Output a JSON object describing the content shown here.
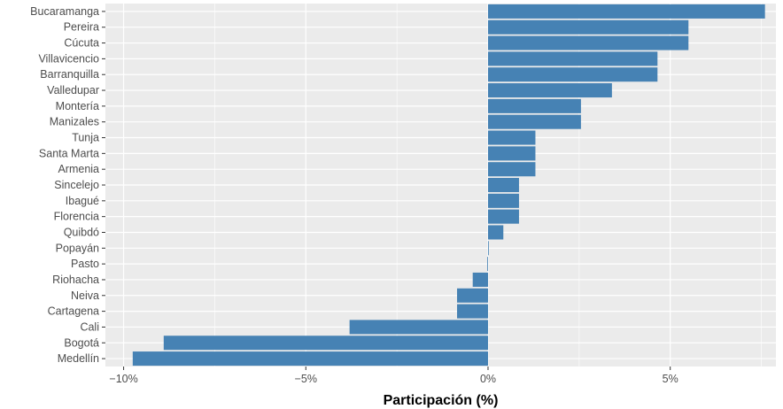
{
  "chart_data": {
    "type": "bar",
    "orientation": "horizontal",
    "title": "",
    "xlabel": "Participación (%)",
    "ylabel": "",
    "categories": [
      "Bucaramanga",
      "Pereira",
      "Cúcuta",
      "Villavicencio",
      "Barranquilla",
      "Valledupar",
      "Montería",
      "Manizales",
      "Tunja",
      "Santa Marta",
      "Armenia",
      "Sincelejo",
      "Ibagué",
      "Florencia",
      "Quibdó",
      "Popayán",
      "Pasto",
      "Riohacha",
      "Neiva",
      "Cartagena",
      "Cali",
      "Bogotá",
      "Medellín"
    ],
    "values": [
      7.6,
      5.5,
      5.5,
      4.65,
      4.65,
      3.4,
      2.55,
      2.55,
      1.3,
      1.3,
      1.3,
      0.85,
      0.85,
      0.85,
      0.42,
      0.02,
      -0.02,
      -0.42,
      -0.85,
      -0.85,
      -3.8,
      -8.9,
      -9.75
    ],
    "xlim": [
      -10.5,
      7.9
    ],
    "xticks": [
      -10,
      -5,
      0,
      5
    ],
    "xtick_labels": [
      "−10%",
      "−5%",
      "0%",
      "5%"
    ],
    "grid": true,
    "bar_color": "#4682b4",
    "panel_color": "#ebebeb",
    "grid_color": "#ffffff"
  }
}
